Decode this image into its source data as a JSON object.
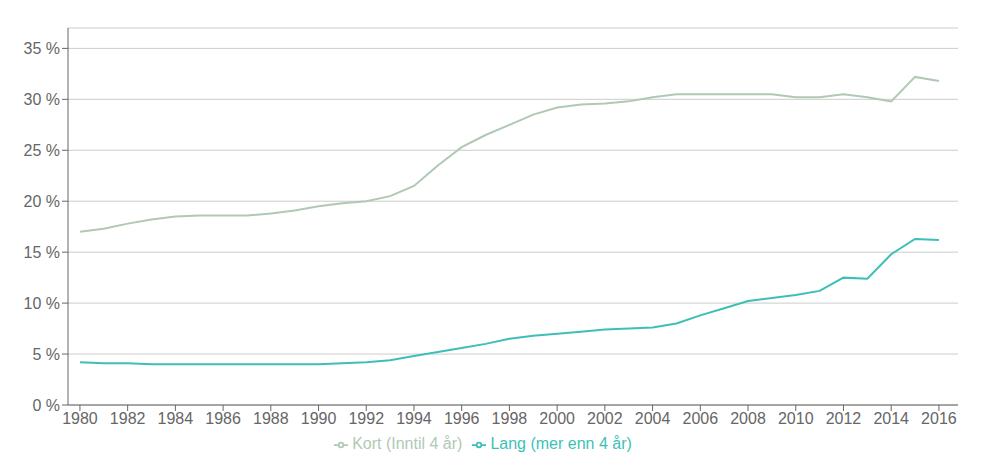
{
  "chart_data": {
    "type": "line",
    "x": [
      1980,
      1981,
      1982,
      1983,
      1984,
      1985,
      1986,
      1987,
      1988,
      1989,
      1990,
      1991,
      1992,
      1993,
      1994,
      1995,
      1996,
      1997,
      1998,
      1999,
      2000,
      2001,
      2002,
      2003,
      2004,
      2005,
      2006,
      2007,
      2008,
      2009,
      2010,
      2011,
      2012,
      2013,
      2014,
      2015,
      2016
    ],
    "series": [
      {
        "name": "Lang (mer enn 4 år)",
        "color": "#3dbfb8",
        "values": [
          4.2,
          4.1,
          4.1,
          4.0,
          4.0,
          4.0,
          4.0,
          4.0,
          4.0,
          4.0,
          4.0,
          4.1,
          4.2,
          4.4,
          4.8,
          5.2,
          5.6,
          6.0,
          6.5,
          6.8,
          7.0,
          7.2,
          7.4,
          7.5,
          7.6,
          8.0,
          8.8,
          9.5,
          10.2,
          10.5,
          10.8,
          11.2,
          12.5,
          12.4,
          14.8,
          16.3,
          16.2
        ]
      },
      {
        "name": "Kort (Inntil 4 år)",
        "color": "#afc9b5",
        "values": [
          17.0,
          17.3,
          17.8,
          18.2,
          18.5,
          18.6,
          18.6,
          18.6,
          18.8,
          19.1,
          19.5,
          19.8,
          20.0,
          20.5,
          21.5,
          23.5,
          25.3,
          26.5,
          27.5,
          28.5,
          29.2,
          29.5,
          29.6,
          29.8,
          30.2,
          30.5,
          30.5,
          30.5,
          30.5,
          30.5,
          30.2,
          30.2,
          30.5,
          30.2,
          29.8,
          32.2,
          31.8
        ]
      }
    ],
    "xlim": [
      1979.5,
      2016.8
    ],
    "ylim": [
      0,
      37
    ],
    "xticks": [
      1980,
      1982,
      1984,
      1986,
      1988,
      1990,
      1992,
      1994,
      1996,
      1998,
      2000,
      2002,
      2004,
      2006,
      2008,
      2010,
      2012,
      2014,
      2016
    ],
    "yticks": [
      {
        "value": 0,
        "label": "0 %"
      },
      {
        "value": 5,
        "label": "5 %"
      },
      {
        "value": 10,
        "label": "10 %"
      },
      {
        "value": 15,
        "label": "15 %"
      },
      {
        "value": 20,
        "label": "20 %"
      },
      {
        "value": 25,
        "label": "25 %"
      },
      {
        "value": 30,
        "label": "30 %"
      },
      {
        "value": 35,
        "label": "35 %"
      }
    ],
    "grid": true,
    "legend": "bottom"
  }
}
